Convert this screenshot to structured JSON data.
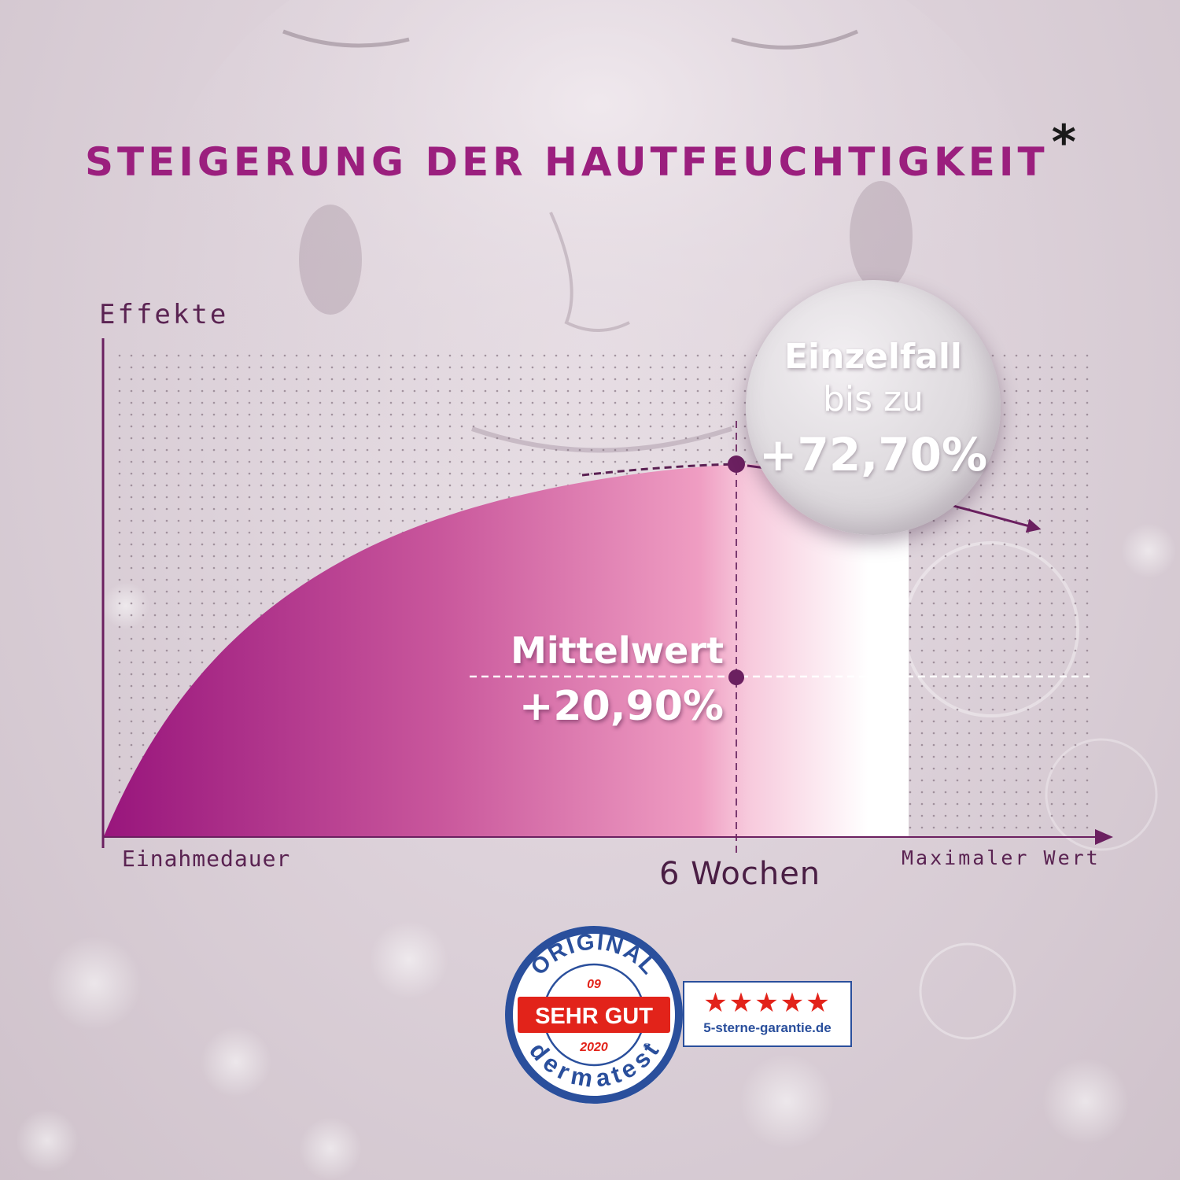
{
  "title": "STEIGERUNG DER HAUTFEUCHTIGKEIT",
  "title_mark": "*",
  "colors": {
    "title": "#9b1f7e",
    "axis": "#6b2060",
    "fill_start": "#98157c",
    "fill_end": "#f4b4cf",
    "seal_red": "#e2231a",
    "seal_blue": "#2a4f9c"
  },
  "chart_data": {
    "type": "area",
    "ylabel": "Effekte",
    "xlabel": "Einahmedauer",
    "x_marker_label": "6 Wochen",
    "x_end_label": "Maximaler Wert",
    "grid": true,
    "annotations": {
      "mean": {
        "label": "Mittelwert",
        "value": "+20,90%"
      },
      "max": {
        "label": "Einzelfall",
        "sub": "bis zu",
        "value": "+72,70%"
      }
    }
  },
  "badge": {
    "ring_top": "ORIGINAL",
    "year_top": "09",
    "rating": "SEHR GUT",
    "year_bottom": "2020",
    "brand": "dermatest",
    "registered": "®",
    "stars": "★★★★★",
    "site": "5-sterne-garantie.de"
  }
}
